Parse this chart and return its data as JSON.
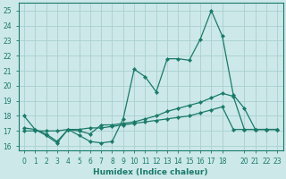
{
  "title": "",
  "xlabel": "Humidex (Indice chaleur)",
  "ylabel": "",
  "background_color": "#cce8e8",
  "grid_color": "#aacfcf",
  "line_color": "#1a7a6a",
  "xlim": [
    -0.5,
    23.5
  ],
  "ylim": [
    15.7,
    25.5
  ],
  "yticks": [
    16,
    17,
    18,
    19,
    20,
    21,
    22,
    23,
    24,
    25
  ],
  "xticks": [
    0,
    1,
    2,
    3,
    4,
    5,
    6,
    7,
    8,
    9,
    10,
    11,
    12,
    13,
    14,
    15,
    16,
    17,
    18,
    20,
    21,
    22,
    23
  ],
  "line1_x": [
    0,
    1,
    2,
    3,
    4,
    5,
    6,
    7,
    8,
    9,
    10,
    11,
    12,
    13,
    14,
    15,
    16,
    17,
    18,
    19,
    20,
    21,
    22,
    23
  ],
  "line1_y": [
    18.0,
    17.1,
    16.8,
    16.3,
    17.1,
    16.7,
    16.3,
    16.2,
    16.3,
    17.8,
    21.1,
    20.6,
    19.6,
    21.8,
    21.8,
    21.7,
    23.1,
    25.0,
    23.3,
    19.4,
    18.5,
    17.1,
    17.1,
    17.1
  ],
  "line2_x": [
    0,
    1,
    2,
    3,
    4,
    5,
    6,
    7,
    8,
    9,
    10,
    11,
    12,
    13,
    14,
    15,
    16,
    17,
    18,
    19,
    20,
    21,
    22,
    23
  ],
  "line2_y": [
    17.2,
    17.1,
    16.7,
    16.2,
    17.1,
    17.0,
    16.8,
    17.4,
    17.4,
    17.5,
    17.6,
    17.8,
    18.0,
    18.3,
    18.5,
    18.7,
    18.9,
    19.2,
    19.5,
    19.3,
    17.1,
    17.1,
    17.1,
    17.1
  ],
  "line3_x": [
    0,
    1,
    2,
    3,
    4,
    5,
    6,
    7,
    8,
    9,
    10,
    11,
    12,
    13,
    14,
    15,
    16,
    17,
    18,
    19,
    20,
    21,
    22,
    23
  ],
  "line3_y": [
    17.0,
    17.0,
    17.0,
    17.0,
    17.1,
    17.1,
    17.2,
    17.2,
    17.3,
    17.4,
    17.5,
    17.6,
    17.7,
    17.8,
    17.9,
    18.0,
    18.2,
    18.4,
    18.6,
    17.1,
    17.1,
    17.1,
    17.1,
    17.1
  ]
}
